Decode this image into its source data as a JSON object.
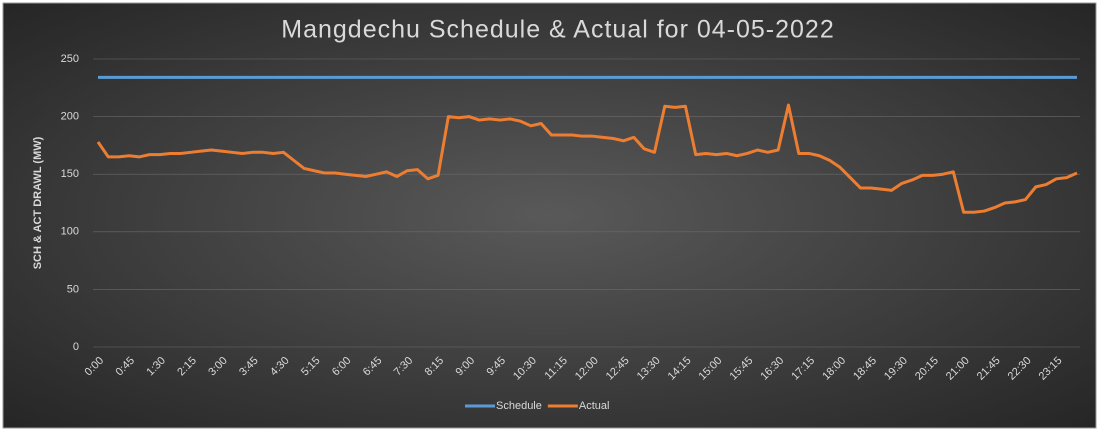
{
  "chart_data": {
    "type": "line",
    "title": "Mangdechu Schedule & Actual for 04-05-2022",
    "y_label": "SCH & ACT DRAWL (MW)",
    "categories": [
      "0:00",
      null,
      null,
      "0:45",
      null,
      null,
      "1:30",
      null,
      null,
      "2:15",
      null,
      null,
      "3:00",
      null,
      null,
      "3:45",
      null,
      null,
      "4:30",
      null,
      null,
      "5:15",
      null,
      null,
      "6:00",
      null,
      null,
      "6:45",
      null,
      null,
      "7:30",
      null,
      null,
      "8:15",
      null,
      null,
      "9:00",
      null,
      null,
      "9:45",
      null,
      null,
      "10:30",
      null,
      null,
      "11:15",
      null,
      null,
      "12:00",
      null,
      null,
      "12:45",
      null,
      null,
      "13:30",
      null,
      null,
      "14:15",
      null,
      null,
      "15:00",
      null,
      null,
      "15:45",
      null,
      null,
      "16:30",
      null,
      null,
      "17:15",
      null,
      null,
      "18:00",
      null,
      null,
      "18:45",
      null,
      null,
      "19:30",
      null,
      null,
      "20:15",
      null,
      null,
      "21:00",
      null,
      null,
      "21:45",
      null,
      null,
      "22:30",
      null,
      null,
      "23:15",
      null,
      null
    ],
    "series": [
      {
        "name": "Schedule",
        "color": "#5b9bd5",
        "values": [
          234,
          234,
          234,
          234,
          234,
          234,
          234,
          234,
          234,
          234,
          234,
          234,
          234,
          234,
          234,
          234,
          234,
          234,
          234,
          234,
          234,
          234,
          234,
          234,
          234,
          234,
          234,
          234,
          234,
          234,
          234,
          234,
          234,
          234,
          234,
          234,
          234,
          234,
          234,
          234,
          234,
          234,
          234,
          234,
          234,
          234,
          234,
          234,
          234,
          234,
          234,
          234,
          234,
          234,
          234,
          234,
          234,
          234,
          234,
          234,
          234,
          234,
          234,
          234,
          234,
          234,
          234,
          234,
          234,
          234,
          234,
          234,
          234,
          234,
          234,
          234,
          234,
          234,
          234,
          234,
          234,
          234,
          234,
          234,
          234,
          234,
          234,
          234,
          234,
          234,
          234,
          234,
          234,
          234,
          234,
          234
        ]
      },
      {
        "name": "Actual",
        "color": "#ed7d31",
        "values": [
          178,
          165,
          165,
          166,
          165,
          167,
          167,
          168,
          168,
          169,
          170,
          171,
          170,
          169,
          168,
          169,
          169,
          168,
          169,
          162,
          155,
          153,
          151,
          151,
          150,
          149,
          148,
          150,
          152,
          148,
          153,
          154,
          146,
          149,
          200,
          199,
          200,
          197,
          198,
          197,
          198,
          196,
          192,
          194,
          184,
          184,
          184,
          183,
          183,
          182,
          181,
          179,
          182,
          172,
          169,
          209,
          208,
          209,
          167,
          168,
          167,
          168,
          166,
          168,
          171,
          169,
          171,
          210,
          168,
          168,
          166,
          162,
          156,
          147,
          138,
          138,
          137,
          136,
          142,
          145,
          149,
          149,
          150,
          152,
          117,
          117,
          118,
          121,
          125,
          126,
          128,
          139,
          141,
          146,
          147,
          151
        ]
      }
    ],
    "ylim": [
      0,
      250
    ],
    "yticks": [
      0,
      50,
      100,
      150,
      200,
      250
    ],
    "grid": true,
    "legend": "bottom"
  }
}
